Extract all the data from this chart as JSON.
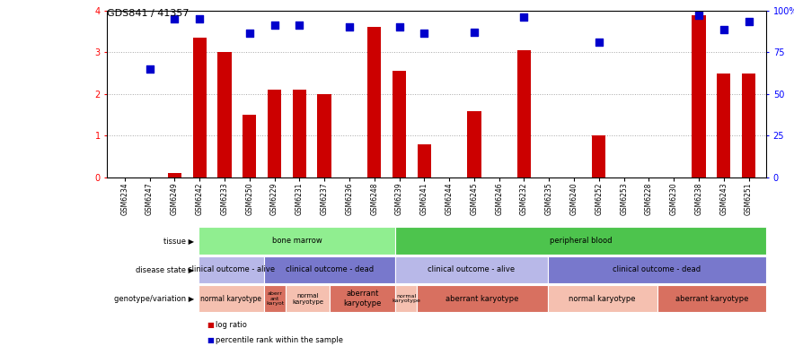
{
  "title": "GDS841 / 41357",
  "samples": [
    "GSM6234",
    "GSM6247",
    "GSM6249",
    "GSM6242",
    "GSM6233",
    "GSM6250",
    "GSM6229",
    "GSM6231",
    "GSM6237",
    "GSM6236",
    "GSM6248",
    "GSM6239",
    "GSM6241",
    "GSM6244",
    "GSM6245",
    "GSM6246",
    "GSM6232",
    "GSM6235",
    "GSM6240",
    "GSM6252",
    "GSM6253",
    "GSM6228",
    "GSM6230",
    "GSM6238",
    "GSM6243",
    "GSM6251"
  ],
  "log_ratio": [
    0.0,
    0.0,
    0.1,
    3.35,
    3.0,
    1.5,
    2.1,
    2.1,
    2.0,
    0.0,
    3.6,
    2.55,
    0.8,
    0.0,
    1.6,
    0.0,
    3.05,
    0.0,
    0.0,
    1.0,
    0.0,
    0.0,
    0.0,
    3.9,
    2.5,
    2.5
  ],
  "percentile": [
    null,
    2.6,
    3.8,
    3.8,
    null,
    3.45,
    3.65,
    3.65,
    null,
    3.6,
    null,
    3.6,
    3.45,
    null,
    3.48,
    null,
    3.85,
    null,
    null,
    3.25,
    null,
    null,
    null,
    3.9,
    3.55,
    3.75
  ],
  "bar_color": "#cc0000",
  "dot_color": "#0000cc",
  "ylim_left": [
    0,
    4
  ],
  "ylim_right": [
    0,
    100
  ],
  "yticks_left": [
    0,
    1,
    2,
    3,
    4
  ],
  "yticks_right": [
    0,
    25,
    50,
    75,
    100
  ],
  "ytick_labels_right": [
    "0",
    "25",
    "50",
    "75",
    "100%"
  ],
  "tissue_groups": [
    {
      "label": "bone marrow",
      "start": 0,
      "end": 9,
      "color": "#90ee90"
    },
    {
      "label": "peripheral blood",
      "start": 9,
      "end": 26,
      "color": "#4dc44d"
    }
  ],
  "disease_groups": [
    {
      "label": "clinical outcome - alive",
      "start": 0,
      "end": 3,
      "color": "#b8b8e8"
    },
    {
      "label": "clinical outcome - dead",
      "start": 3,
      "end": 9,
      "color": "#7878cc"
    },
    {
      "label": "clinical outcome - alive",
      "start": 9,
      "end": 16,
      "color": "#b8b8e8"
    },
    {
      "label": "clinical outcome - dead",
      "start": 16,
      "end": 26,
      "color": "#7878cc"
    }
  ],
  "geno_groups": [
    {
      "label": "normal karyotype",
      "start": 0,
      "end": 3,
      "color": "#f5c0b0",
      "fontsize": 5.5
    },
    {
      "label": "aberr\nant\nkaryot",
      "start": 3,
      "end": 4,
      "color": "#d87060",
      "fontsize": 4.5
    },
    {
      "label": "normal\nkaryotype",
      "start": 4,
      "end": 6,
      "color": "#f5c0b0",
      "fontsize": 5.0
    },
    {
      "label": "aberrant\nkaryotype",
      "start": 6,
      "end": 9,
      "color": "#d87060",
      "fontsize": 6.0
    },
    {
      "label": "normal\nkaryotype",
      "start": 9,
      "end": 10,
      "color": "#f5c0b0",
      "fontsize": 4.5
    },
    {
      "label": "aberrant karyotype",
      "start": 10,
      "end": 16,
      "color": "#d87060",
      "fontsize": 6.0
    },
    {
      "label": "normal karyotype",
      "start": 16,
      "end": 21,
      "color": "#f5c0b0",
      "fontsize": 6.0
    },
    {
      "label": "aberrant karyotype",
      "start": 21,
      "end": 26,
      "color": "#d87060",
      "fontsize": 6.0
    }
  ],
  "row_labels": [
    "tissue",
    "disease state",
    "genotype/variation"
  ],
  "legend_items": [
    {
      "color": "#cc0000",
      "label": "log ratio"
    },
    {
      "color": "#0000cc",
      "label": "percentile rank within the sample"
    }
  ],
  "background_color": "#ffffff",
  "grid_color": "#000000",
  "grid_alpha": 0.35,
  "bar_width": 0.55,
  "dot_size": 28
}
